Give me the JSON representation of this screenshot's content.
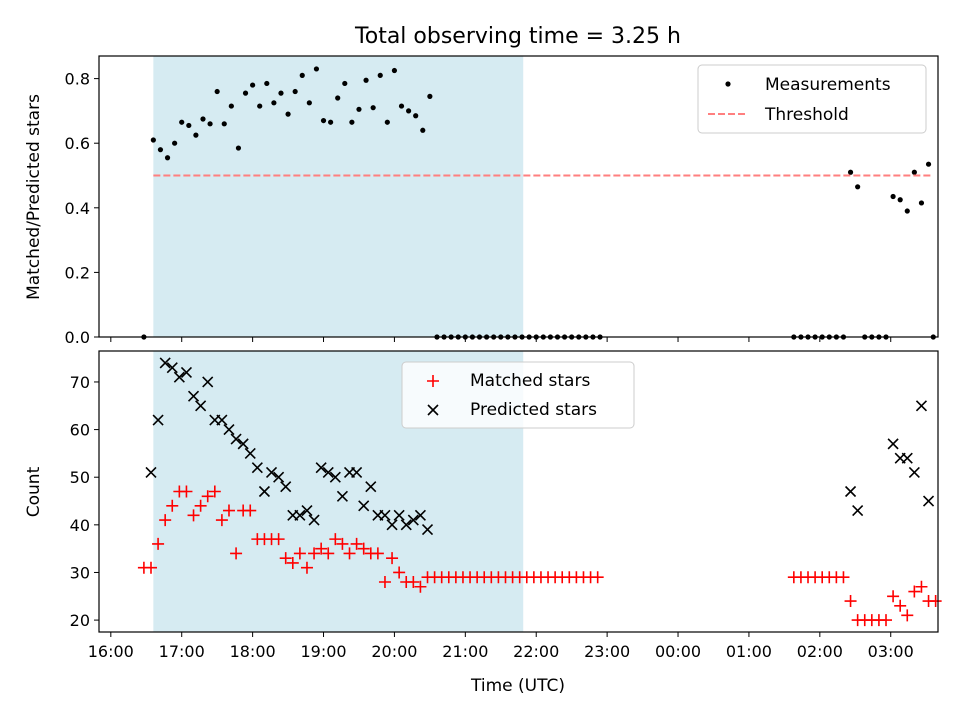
{
  "figure": {
    "title": "Total observing time = 3.25 h"
  },
  "chart_data": [
    {
      "type": "scatter",
      "ylabel": "Matched/Predicted stars",
      "xlabel": "",
      "x_unit": "minutes relative to 00:00 UTC",
      "xlim": [
        -490,
        220
      ],
      "ylim": [
        0,
        0.87
      ],
      "yticks": [
        0,
        0.2,
        0.4,
        0.6,
        0.8
      ],
      "ytick_labels": [
        "0.0",
        "0.2",
        "0.4",
        "0.6",
        "0.8"
      ],
      "shaded_span": [
        -444,
        -131
      ],
      "legend": {
        "position": "upper right",
        "entries": [
          "Measurements",
          "Threshold"
        ]
      },
      "series": [
        {
          "name": "Measurements",
          "marker": "dot",
          "color": "#000000",
          "points": [
            [
              -452,
              0.0
            ],
            [
              -444,
              0.61
            ],
            [
              -438,
              0.58
            ],
            [
              -432,
              0.555
            ],
            [
              -426,
              0.6
            ],
            [
              -420,
              0.665
            ],
            [
              -414,
              0.655
            ],
            [
              -408,
              0.625
            ],
            [
              -402,
              0.675
            ],
            [
              -396,
              0.66
            ],
            [
              -390,
              0.76
            ],
            [
              -384,
              0.66
            ],
            [
              -378,
              0.715
            ],
            [
              -372,
              0.585
            ],
            [
              -366,
              0.755
            ],
            [
              -360,
              0.78
            ],
            [
              -354,
              0.715
            ],
            [
              -348,
              0.785
            ],
            [
              -342,
              0.725
            ],
            [
              -336,
              0.755
            ],
            [
              -330,
              0.69
            ],
            [
              -324,
              0.76
            ],
            [
              -318,
              0.81
            ],
            [
              -312,
              0.725
            ],
            [
              -306,
              0.83
            ],
            [
              -300,
              0.67
            ],
            [
              -294,
              0.665
            ],
            [
              -288,
              0.74
            ],
            [
              -282,
              0.785
            ],
            [
              -276,
              0.665
            ],
            [
              -270,
              0.705
            ],
            [
              -264,
              0.795
            ],
            [
              -258,
              0.71
            ],
            [
              -252,
              0.81
            ],
            [
              -246,
              0.665
            ],
            [
              -240,
              0.825
            ],
            [
              -234,
              0.715
            ],
            [
              -228,
              0.7
            ],
            [
              -222,
              0.685
            ],
            [
              -216,
              0.64
            ],
            [
              -210,
              0.745
            ],
            [
              -204,
              0.0
            ],
            [
              -198,
              0.0
            ],
            [
              -192,
              0.0
            ],
            [
              -186,
              0.0
            ],
            [
              -180,
              0.0
            ],
            [
              -174,
              0.0
            ],
            [
              -168,
              0.0
            ],
            [
              -162,
              0.0
            ],
            [
              -156,
              0.0
            ],
            [
              -150,
              0.0
            ],
            [
              -144,
              0.0
            ],
            [
              -138,
              0.0
            ],
            [
              -132,
              0.0
            ],
            [
              -126,
              0.0
            ],
            [
              -120,
              0.0
            ],
            [
              -114,
              0.0
            ],
            [
              -108,
              0.0
            ],
            [
              -102,
              0.0
            ],
            [
              -96,
              0.0
            ],
            [
              -90,
              0.0
            ],
            [
              -84,
              0.0
            ],
            [
              -78,
              0.0
            ],
            [
              -72,
              0.0
            ],
            [
              -66,
              0.0
            ],
            [
              98,
              0.0
            ],
            [
              104,
              0.0
            ],
            [
              110,
              0.0
            ],
            [
              116,
              0.0
            ],
            [
              122,
              0.0
            ],
            [
              128,
              0.0
            ],
            [
              134,
              0.0
            ],
            [
              140,
              0.0
            ],
            [
              146,
              0.51
            ],
            [
              152,
              0.465
            ],
            [
              158,
              0.0
            ],
            [
              164,
              0.0
            ],
            [
              170,
              0.0
            ],
            [
              176,
              0.0
            ],
            [
              182,
              0.435
            ],
            [
              188,
              0.425
            ],
            [
              194,
              0.39
            ],
            [
              200,
              0.51
            ],
            [
              206,
              0.415
            ],
            [
              212,
              0.535
            ],
            [
              216,
              0.0
            ]
          ]
        },
        {
          "name": "Threshold",
          "type": "line",
          "style": "dashed",
          "color": "#ff7f7f",
          "x": [
            -444,
            216
          ],
          "y": [
            0.5,
            0.5
          ]
        }
      ]
    },
    {
      "type": "scatter",
      "ylabel": "Count",
      "xlabel": "Time (UTC)",
      "x_unit": "minutes relative to 00:00 UTC",
      "xlim": [
        -490,
        220
      ],
      "ylim": [
        17.5,
        76.5
      ],
      "yticks": [
        20,
        30,
        40,
        50,
        60,
        70
      ],
      "ytick_labels": [
        "20",
        "30",
        "40",
        "50",
        "60",
        "70"
      ],
      "xticks": [
        -480,
        -420,
        -360,
        -300,
        -240,
        -180,
        -120,
        -60,
        0,
        60,
        120,
        180
      ],
      "xtick_labels": [
        "16:00",
        "17:00",
        "18:00",
        "19:00",
        "20:00",
        "21:00",
        "22:00",
        "23:00",
        "00:00",
        "01:00",
        "02:00",
        "03:00"
      ],
      "shaded_span": [
        -444,
        -131
      ],
      "legend": {
        "position": "upper center",
        "entries": [
          "Matched stars",
          "Predicted stars"
        ]
      },
      "series": [
        {
          "name": "Matched stars",
          "marker": "plus",
          "color": "#ff0000",
          "points": [
            [
              -452,
              31
            ],
            [
              -446,
              31
            ],
            [
              -440,
              36
            ],
            [
              -434,
              41
            ],
            [
              -428,
              44
            ],
            [
              -422,
              47
            ],
            [
              -416,
              47
            ],
            [
              -410,
              42
            ],
            [
              -404,
              44
            ],
            [
              -398,
              46
            ],
            [
              -392,
              47
            ],
            [
              -386,
              41
            ],
            [
              -380,
              43
            ],
            [
              -374,
              34
            ],
            [
              -368,
              43
            ],
            [
              -362,
              43
            ],
            [
              -356,
              37
            ],
            [
              -350,
              37
            ],
            [
              -344,
              37
            ],
            [
              -338,
              37
            ],
            [
              -332,
              33
            ],
            [
              -326,
              32
            ],
            [
              -320,
              34
            ],
            [
              -314,
              31
            ],
            [
              -308,
              34
            ],
            [
              -302,
              35
            ],
            [
              -296,
              34
            ],
            [
              -290,
              37
            ],
            [
              -284,
              36
            ],
            [
              -278,
              34
            ],
            [
              -272,
              36
            ],
            [
              -266,
              35
            ],
            [
              -260,
              34
            ],
            [
              -254,
              34
            ],
            [
              -248,
              28
            ],
            [
              -242,
              33
            ],
            [
              -236,
              30
            ],
            [
              -230,
              28
            ],
            [
              -224,
              28
            ],
            [
              -218,
              27
            ],
            [
              -212,
              29
            ],
            [
              -206,
              29
            ],
            [
              -200,
              29
            ],
            [
              -194,
              29
            ],
            [
              -188,
              29
            ],
            [
              -182,
              29
            ],
            [
              -176,
              29
            ],
            [
              -170,
              29
            ],
            [
              -164,
              29
            ],
            [
              -158,
              29
            ],
            [
              -152,
              29
            ],
            [
              -146,
              29
            ],
            [
              -140,
              29
            ],
            [
              -134,
              29
            ],
            [
              -128,
              29
            ],
            [
              -122,
              29
            ],
            [
              -116,
              29
            ],
            [
              -110,
              29
            ],
            [
              -104,
              29
            ],
            [
              -98,
              29
            ],
            [
              -92,
              29
            ],
            [
              -86,
              29
            ],
            [
              -80,
              29
            ],
            [
              -74,
              29
            ],
            [
              -68,
              29
            ],
            [
              98,
              29
            ],
            [
              104,
              29
            ],
            [
              110,
              29
            ],
            [
              116,
              29
            ],
            [
              122,
              29
            ],
            [
              128,
              29
            ],
            [
              134,
              29
            ],
            [
              140,
              29
            ],
            [
              146,
              24
            ],
            [
              152,
              20
            ],
            [
              158,
              20
            ],
            [
              164,
              20
            ],
            [
              170,
              20
            ],
            [
              176,
              20
            ],
            [
              182,
              25
            ],
            [
              188,
              23
            ],
            [
              194,
              21
            ],
            [
              200,
              26
            ],
            [
              206,
              27
            ],
            [
              212,
              24
            ],
            [
              218,
              24
            ]
          ]
        },
        {
          "name": "Predicted stars",
          "marker": "x",
          "color": "#000000",
          "points": [
            [
              -446,
              51
            ],
            [
              -440,
              62
            ],
            [
              -434,
              74
            ],
            [
              -428,
              73
            ],
            [
              -422,
              71
            ],
            [
              -416,
              72
            ],
            [
              -410,
              67
            ],
            [
              -404,
              65
            ],
            [
              -398,
              70
            ],
            [
              -392,
              62
            ],
            [
              -386,
              62
            ],
            [
              -380,
              60
            ],
            [
              -374,
              58
            ],
            [
              -368,
              57
            ],
            [
              -362,
              55
            ],
            [
              -356,
              52
            ],
            [
              -350,
              47
            ],
            [
              -344,
              51
            ],
            [
              -338,
              50
            ],
            [
              -332,
              48
            ],
            [
              -326,
              42
            ],
            [
              -320,
              42
            ],
            [
              -314,
              43
            ],
            [
              -308,
              41
            ],
            [
              -302,
              52
            ],
            [
              -296,
              51
            ],
            [
              -290,
              50
            ],
            [
              -284,
              46
            ],
            [
              -278,
              51
            ],
            [
              -272,
              51
            ],
            [
              -266,
              44
            ],
            [
              -260,
              48
            ],
            [
              -254,
              42
            ],
            [
              -248,
              42
            ],
            [
              -242,
              40
            ],
            [
              -236,
              42
            ],
            [
              -230,
              40
            ],
            [
              -224,
              41
            ],
            [
              -218,
              42
            ],
            [
              -212,
              39
            ],
            [
              146,
              47
            ],
            [
              152,
              43
            ],
            [
              182,
              57
            ],
            [
              188,
              54
            ],
            [
              194,
              54
            ],
            [
              200,
              51
            ],
            [
              206,
              65
            ],
            [
              212,
              45
            ]
          ]
        }
      ]
    }
  ]
}
